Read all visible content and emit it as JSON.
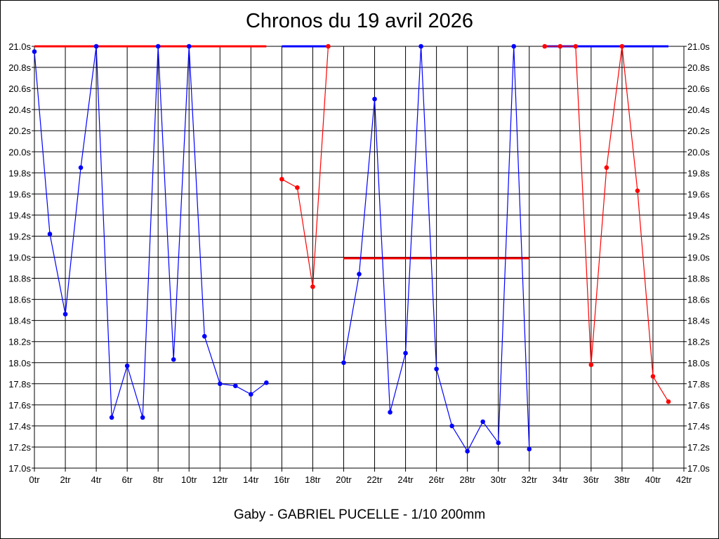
{
  "chart_data": {
    "type": "line",
    "title": "Chronos du 19 avril 2026",
    "subtitle": "Gaby - GABRIEL PUCELLE - 1/10 200mm",
    "xlabel": "",
    "ylabel": "",
    "xlim": [
      0,
      42
    ],
    "ylim": [
      17.0,
      21.0
    ],
    "x_ticks": [
      0,
      2,
      4,
      6,
      8,
      10,
      12,
      14,
      16,
      18,
      20,
      22,
      24,
      26,
      28,
      30,
      32,
      34,
      36,
      38,
      40,
      42
    ],
    "x_tick_labels": [
      "0tr",
      "2tr",
      "4tr",
      "6tr",
      "8tr",
      "10tr",
      "12tr",
      "14tr",
      "16tr",
      "18tr",
      "20tr",
      "22tr",
      "24tr",
      "26tr",
      "28tr",
      "30tr",
      "32tr",
      "34tr",
      "36tr",
      "38tr",
      "40tr",
      "42tr"
    ],
    "y_ticks": [
      17.0,
      17.2,
      17.4,
      17.6,
      17.8,
      18.0,
      18.2,
      18.4,
      18.6,
      18.8,
      19.0,
      19.2,
      19.4,
      19.6,
      19.8,
      20.0,
      20.2,
      20.4,
      20.6,
      20.8,
      21.0
    ],
    "y_tick_labels": [
      "17.0s",
      "17.2s",
      "17.4s",
      "17.6s",
      "17.8s",
      "18.0s",
      "18.2s",
      "18.4s",
      "18.6s",
      "18.8s",
      "19.0s",
      "19.2s",
      "19.4s",
      "19.6s",
      "19.8s",
      "20.0s",
      "20.2s",
      "20.4s",
      "20.6s",
      "20.8s",
      "21.0s"
    ],
    "grid": true,
    "series": [
      {
        "color": "#0000ff",
        "x": [
          0,
          1,
          2,
          3,
          4,
          5,
          6,
          7,
          8,
          9,
          10,
          11,
          12,
          13,
          14,
          15
        ],
        "y": [
          20.95,
          19.22,
          18.46,
          19.85,
          21.0,
          17.48,
          17.97,
          17.48,
          21.0,
          18.03,
          21.0,
          18.25,
          17.8,
          17.78,
          17.7,
          17.81
        ]
      },
      {
        "color": "#ff0000",
        "x": [
          16,
          17,
          18,
          19
        ],
        "y": [
          19.74,
          19.66,
          18.72,
          21.0
        ]
      },
      {
        "color": "#0000ff",
        "x": [
          20,
          21,
          22,
          23,
          24,
          25,
          26,
          27,
          28,
          29,
          30,
          31,
          32
        ],
        "y": [
          18.0,
          18.84,
          20.5,
          17.53,
          18.09,
          21.0,
          17.94,
          17.4,
          17.16,
          17.44,
          17.24,
          21.0,
          17.18
        ]
      },
      {
        "color": "#ff0000",
        "x": [
          33,
          34,
          35,
          36,
          37,
          38,
          39,
          40,
          41
        ],
        "y": [
          21.0,
          21.0,
          21.0,
          17.98,
          19.85,
          21.0,
          19.63,
          17.87,
          17.63
        ]
      }
    ],
    "reference_lines": [
      {
        "color": "#ff0000",
        "y": 21.0,
        "x_range": [
          0,
          15
        ]
      },
      {
        "color": "#0000ff",
        "y": 21.0,
        "x_range": [
          16,
          19
        ]
      },
      {
        "color": "#ff0000",
        "y": 18.99,
        "x_range": [
          20,
          32
        ]
      },
      {
        "color": "#0000ff",
        "y": 21.0,
        "x_range": [
          33,
          41
        ]
      }
    ]
  }
}
